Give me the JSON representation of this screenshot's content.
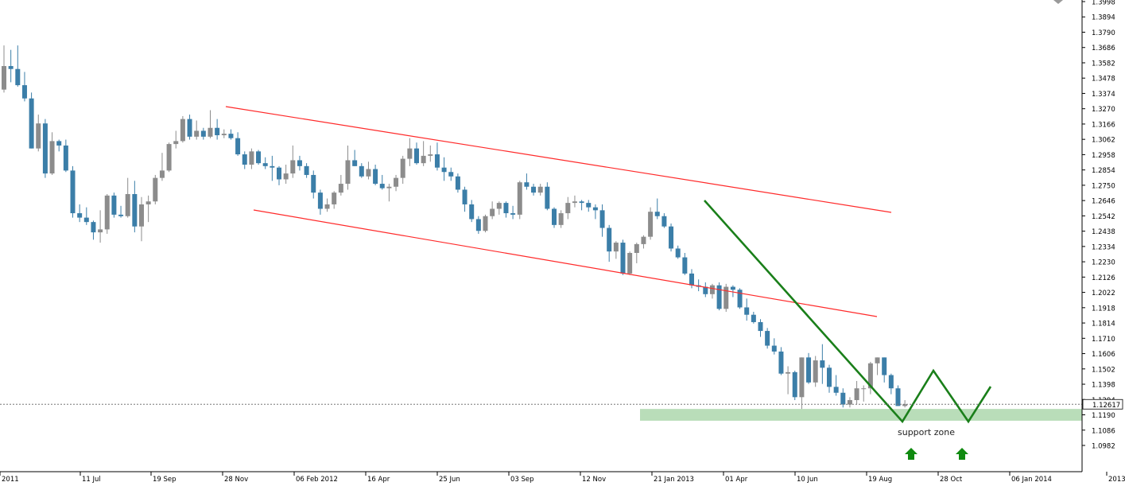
{
  "colors": {
    "bull": "#8c8c8c",
    "bear": "#3b7ea8",
    "channel": "#ff2a2a",
    "pattern": "#1a7f1a",
    "arrow": "#108a10",
    "zone_fill": "#b9ddb9",
    "axis": "#000000"
  },
  "chart_data": {
    "type": "candlestick",
    "timeframe": "weekly",
    "grid": false,
    "y_range": [
      1.0982,
      1.3998
    ],
    "y_ticks": [
      "1.3998",
      "1.3894",
      "1.3790",
      "1.3686",
      "1.3582",
      "1.3478",
      "1.3374",
      "1.3270",
      "1.3166",
      "1.3062",
      "1.2958",
      "1.2854",
      "1.2750",
      "1.2646",
      "1.2542",
      "1.2438",
      "1.2334",
      "1.2230",
      "1.2126",
      "1.2022",
      "1.1918",
      "1.1814",
      "1.1710",
      "1.1606",
      "1.1502",
      "1.1398",
      "1.1294",
      "1.1190",
      "1.1086",
      "1.0982"
    ],
    "x_labels": [
      "2011",
      "11 Jul",
      "19 Sep",
      "28 Nov",
      "06 Feb 2012",
      "16 Apr",
      "25 Jun",
      "03 Sep",
      "12 Nov",
      "21 Jan 2013",
      "01 Apr",
      "10 Jun",
      "19 Aug",
      "28 Oct",
      "06 Jan 2014",
      "2013"
    ],
    "current_price": "1.12617",
    "ohlc": [
      [
        1.34,
        1.37,
        1.338,
        1.356
      ],
      [
        1.356,
        1.367,
        1.345,
        1.354
      ],
      [
        1.354,
        1.37,
        1.342,
        1.343
      ],
      [
        1.343,
        1.352,
        1.332,
        1.334
      ],
      [
        1.334,
        1.338,
        1.3,
        1.3
      ],
      [
        1.3,
        1.323,
        1.298,
        1.317
      ],
      [
        1.317,
        1.32,
        1.28,
        1.283
      ],
      [
        1.283,
        1.311,
        1.282,
        1.305
      ],
      [
        1.305,
        1.306,
        1.298,
        1.302
      ],
      [
        1.302,
        1.306,
        1.284,
        1.285
      ],
      [
        1.285,
        1.288,
        1.253,
        1.256
      ],
      [
        1.256,
        1.262,
        1.25,
        1.253
      ],
      [
        1.253,
        1.26,
        1.248,
        1.25
      ],
      [
        1.25,
        1.251,
        1.238,
        1.243
      ],
      [
        1.243,
        1.258,
        1.236,
        1.245
      ],
      [
        1.245,
        1.269,
        1.242,
        1.268
      ],
      [
        1.268,
        1.27,
        1.253,
        1.255
      ],
      [
        1.255,
        1.261,
        1.253,
        1.254
      ],
      [
        1.254,
        1.28,
        1.253,
        1.269
      ],
      [
        1.269,
        1.278,
        1.243,
        1.247
      ],
      [
        1.247,
        1.267,
        1.237,
        1.262
      ],
      [
        1.262,
        1.268,
        1.25,
        1.264
      ],
      [
        1.264,
        1.282,
        1.262,
        1.28
      ],
      [
        1.28,
        1.297,
        1.278,
        1.285
      ],
      [
        1.285,
        1.304,
        1.284,
        1.303
      ],
      [
        1.303,
        1.312,
        1.3,
        1.305
      ],
      [
        1.305,
        1.322,
        1.304,
        1.32
      ],
      [
        1.32,
        1.323,
        1.306,
        1.308
      ],
      [
        1.308,
        1.319,
        1.306,
        1.312
      ],
      [
        1.312,
        1.314,
        1.306,
        1.308
      ],
      [
        1.308,
        1.326,
        1.307,
        1.314
      ],
      [
        1.314,
        1.32,
        1.306,
        1.309
      ],
      [
        1.309,
        1.313,
        1.307,
        1.31
      ],
      [
        1.31,
        1.313,
        1.306,
        1.307
      ],
      [
        1.307,
        1.311,
        1.295,
        1.296
      ],
      [
        1.296,
        1.298,
        1.286,
        1.289
      ],
      [
        1.289,
        1.3,
        1.286,
        1.298
      ],
      [
        1.298,
        1.299,
        1.289,
        1.29
      ],
      [
        1.29,
        1.294,
        1.286,
        1.288
      ],
      [
        1.288,
        1.295,
        1.278,
        1.287
      ],
      [
        1.287,
        1.288,
        1.275,
        1.279
      ],
      [
        1.279,
        1.289,
        1.276,
        1.283
      ],
      [
        1.283,
        1.302,
        1.28,
        1.292
      ],
      [
        1.292,
        1.295,
        1.285,
        1.288
      ],
      [
        1.288,
        1.29,
        1.28,
        1.282
      ],
      [
        1.282,
        1.285,
        1.266,
        1.27
      ],
      [
        1.27,
        1.272,
        1.255,
        1.259
      ],
      [
        1.259,
        1.266,
        1.257,
        1.262
      ],
      [
        1.262,
        1.271,
        1.259,
        1.27
      ],
      [
        1.27,
        1.282,
        1.268,
        1.276
      ],
      [
        1.276,
        1.302,
        1.272,
        1.292
      ],
      [
        1.292,
        1.299,
        1.288,
        1.288
      ],
      [
        1.288,
        1.29,
        1.28,
        1.281
      ],
      [
        1.281,
        1.291,
        1.279,
        1.286
      ],
      [
        1.286,
        1.289,
        1.275,
        1.276
      ],
      [
        1.276,
        1.282,
        1.272,
        1.273
      ],
      [
        1.273,
        1.276,
        1.264,
        1.274
      ],
      [
        1.274,
        1.282,
        1.271,
        1.28
      ],
      [
        1.28,
        1.295,
        1.276,
        1.293
      ],
      [
        1.293,
        1.307,
        1.288,
        1.3
      ],
      [
        1.3,
        1.304,
        1.289,
        1.29
      ],
      [
        1.29,
        1.305,
        1.288,
        1.295
      ],
      [
        1.295,
        1.302,
        1.291,
        1.296
      ],
      [
        1.296,
        1.304,
        1.285,
        1.287
      ],
      [
        1.287,
        1.294,
        1.278,
        1.284
      ],
      [
        1.284,
        1.287,
        1.278,
        1.281
      ],
      [
        1.281,
        1.283,
        1.27,
        1.272
      ],
      [
        1.272,
        1.274,
        1.257,
        1.262
      ],
      [
        1.262,
        1.265,
        1.25,
        1.252
      ],
      [
        1.252,
        1.254,
        1.242,
        1.244
      ],
      [
        1.244,
        1.255,
        1.243,
        1.254
      ],
      [
        1.254,
        1.264,
        1.252,
        1.259
      ],
      [
        1.259,
        1.264,
        1.255,
        1.263
      ],
      [
        1.263,
        1.264,
        1.253,
        1.256
      ],
      [
        1.256,
        1.261,
        1.252,
        1.255
      ],
      [
        1.255,
        1.278,
        1.252,
        1.277
      ],
      [
        1.277,
        1.283,
        1.272,
        1.274
      ],
      [
        1.274,
        1.276,
        1.268,
        1.27
      ],
      [
        1.27,
        1.276,
        1.268,
        1.274
      ],
      [
        1.274,
        1.277,
        1.258,
        1.259
      ],
      [
        1.259,
        1.26,
        1.246,
        1.248
      ],
      [
        1.248,
        1.258,
        1.246,
        1.256
      ],
      [
        1.256,
        1.267,
        1.252,
        1.263
      ],
      [
        1.263,
        1.268,
        1.26,
        1.264
      ],
      [
        1.264,
        1.265,
        1.258,
        1.263
      ],
      [
        1.263,
        1.265,
        1.257,
        1.26
      ],
      [
        1.26,
        1.262,
        1.252,
        1.258
      ],
      [
        1.258,
        1.262,
        1.24,
        1.246
      ],
      [
        1.246,
        1.248,
        1.223,
        1.23
      ],
      [
        1.23,
        1.237,
        1.225,
        1.236
      ],
      [
        1.236,
        1.238,
        1.214,
        1.215
      ],
      [
        1.215,
        1.23,
        1.214,
        1.229
      ],
      [
        1.229,
        1.236,
        1.222,
        1.235
      ],
      [
        1.235,
        1.241,
        1.232,
        1.24
      ],
      [
        1.24,
        1.26,
        1.238,
        1.257
      ],
      [
        1.257,
        1.266,
        1.252,
        1.254
      ],
      [
        1.254,
        1.256,
        1.246,
        1.247
      ],
      [
        1.247,
        1.249,
        1.23,
        1.232
      ],
      [
        1.232,
        1.234,
        1.225,
        1.226
      ],
      [
        1.226,
        1.229,
        1.214,
        1.215
      ],
      [
        1.215,
        1.218,
        1.205,
        1.207
      ],
      [
        1.207,
        1.211,
        1.203,
        1.206
      ],
      [
        1.206,
        1.209,
        1.199,
        1.201
      ],
      [
        1.201,
        1.208,
        1.198,
        1.207
      ],
      [
        1.207,
        1.209,
        1.19,
        1.191
      ],
      [
        1.191,
        1.208,
        1.189,
        1.206
      ],
      [
        1.206,
        1.207,
        1.199,
        1.204
      ],
      [
        1.204,
        1.205,
        1.191,
        1.192
      ],
      [
        1.192,
        1.198,
        1.183,
        1.187
      ],
      [
        1.187,
        1.189,
        1.181,
        1.182
      ],
      [
        1.182,
        1.184,
        1.172,
        1.176
      ],
      [
        1.176,
        1.178,
        1.164,
        1.166
      ],
      [
        1.166,
        1.171,
        1.16,
        1.162
      ],
      [
        1.162,
        1.165,
        1.146,
        1.147
      ],
      [
        1.147,
        1.152,
        1.133,
        1.148
      ],
      [
        1.148,
        1.149,
        1.129,
        1.131
      ],
      [
        1.131,
        1.158,
        1.123,
        1.158
      ],
      [
        1.158,
        1.161,
        1.14,
        1.141
      ],
      [
        1.141,
        1.159,
        1.138,
        1.156
      ],
      [
        1.156,
        1.167,
        1.14,
        1.151
      ],
      [
        1.151,
        1.153,
        1.134,
        1.138
      ],
      [
        1.138,
        1.146,
        1.132,
        1.134
      ],
      [
        1.134,
        1.137,
        1.124,
        1.126
      ],
      [
        1.126,
        1.131,
        1.124,
        1.129
      ],
      [
        1.129,
        1.142,
        1.126,
        1.137
      ],
      [
        1.137,
        1.139,
        1.128,
        1.137
      ],
      [
        1.137,
        1.155,
        1.133,
        1.154
      ],
      [
        1.154,
        1.158,
        1.146,
        1.158
      ],
      [
        1.158,
        1.158,
        1.141,
        1.146
      ],
      [
        1.146,
        1.147,
        1.133,
        1.137
      ],
      [
        1.137,
        1.139,
        1.125,
        1.125
      ],
      [
        1.125,
        1.129,
        1.124,
        1.1262
      ]
    ],
    "annotations": {
      "zone_label": "support zone",
      "zone_price_range": [
        1.115,
        1.123
      ]
    }
  }
}
